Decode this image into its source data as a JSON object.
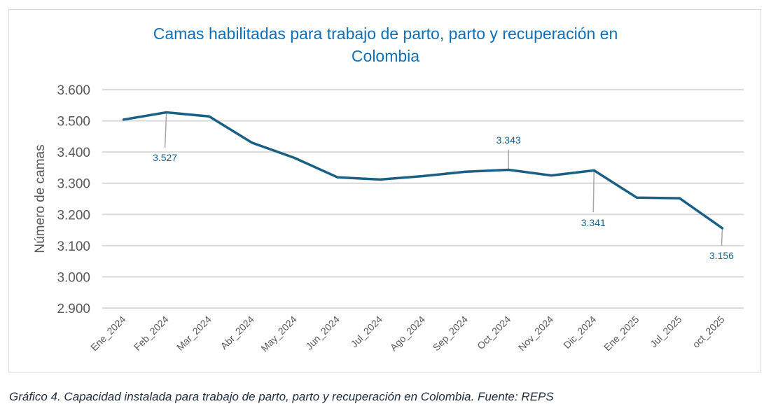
{
  "chart_data": {
    "type": "line",
    "title": "Camas habilitadas para trabajo de parto, parto y recuperación en Colombia",
    "title_lines": [
      "Camas habilitadas para trabajo de parto, parto y recuperación en",
      "Colombia"
    ],
    "xlabel": "",
    "ylabel": "Número de camas",
    "ylim": [
      2900,
      3600
    ],
    "yticks": [
      2900,
      3000,
      3100,
      3200,
      3300,
      3400,
      3500,
      3600
    ],
    "ytick_labels": [
      "2.900",
      "3.000",
      "3.100",
      "3.200",
      "3.300",
      "3.400",
      "3.500",
      "3.600"
    ],
    "grid": true,
    "categories": [
      "Ene_2024",
      "Feb_2024",
      "Mar_2024",
      "Abr_2024",
      "May_2024",
      "Jun_2024",
      "Jul_2024",
      "Ago_2024",
      "Sep_2024",
      "Oct_2024",
      "Nov_2024",
      "Dic_2024",
      "Ene_2025",
      "Jul_2025",
      "oct_2025"
    ],
    "series": [
      {
        "name": "Camas",
        "color": "#1a5f84",
        "values": [
          3504,
          3527,
          3514,
          3430,
          3381,
          3319,
          3312,
          3323,
          3337,
          3343,
          3325,
          3341,
          3254,
          3252,
          3156
        ]
      }
    ],
    "annotations": [
      {
        "category": "Feb_2024",
        "value": 3527,
        "text": "3.527",
        "position": "below"
      },
      {
        "category": "Oct_2024",
        "value": 3343,
        "text": "3.343",
        "position": "above"
      },
      {
        "category": "Dic_2024",
        "value": 3341,
        "text": "3.341",
        "position": "below"
      },
      {
        "category": "oct_2025",
        "value": 3156,
        "text": "3.156",
        "position": "below"
      }
    ]
  },
  "caption": "Gráfico 4. Capacidad instalada para trabajo de parto, parto y recuperación en Colombia.  Fuente: REPS",
  "colors": {
    "title": "#0f70b7",
    "line": "#1a5f84",
    "grid": "#d9d9d9",
    "leader": "#a6a6a6",
    "label": "#1a5f84",
    "tick": "#595959"
  }
}
